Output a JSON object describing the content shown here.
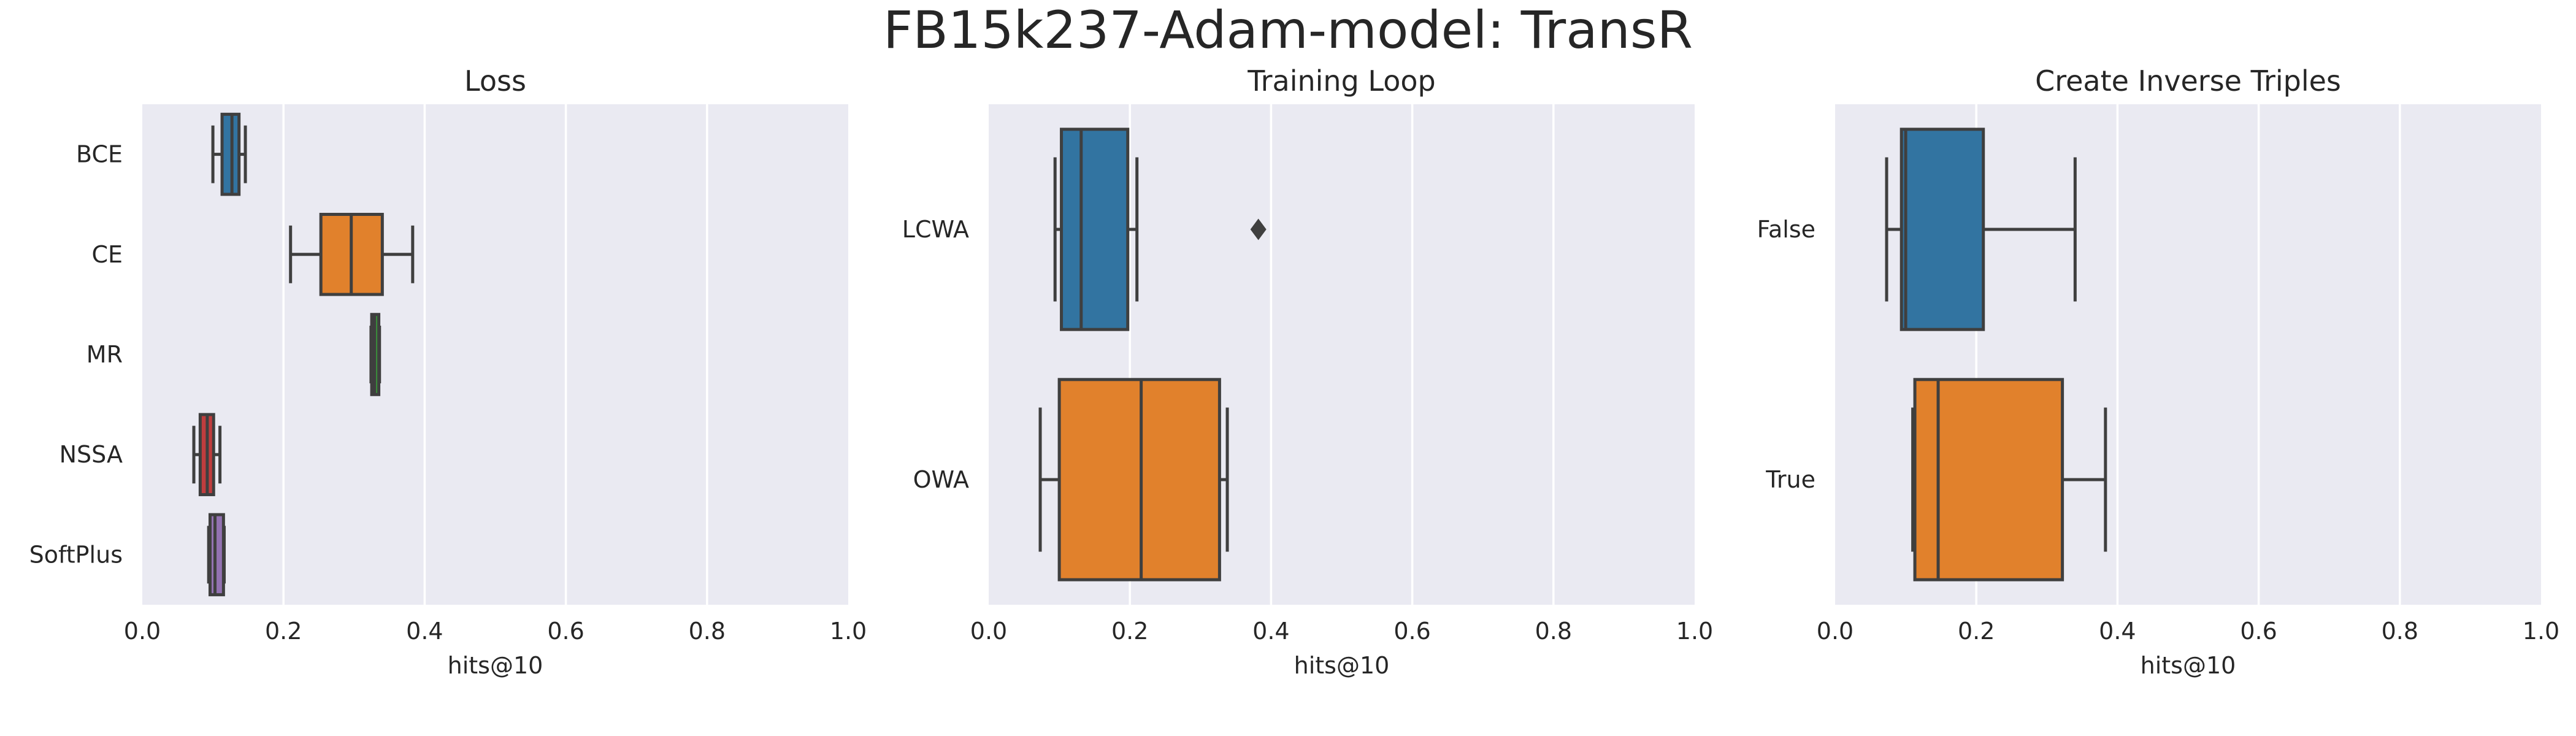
{
  "suptitle": "FB15k237-Adam-model: TransR",
  "chart_data": [
    {
      "type": "box",
      "orientation": "horizontal",
      "title": "Loss",
      "xlabel": "hits@10",
      "ylabel": "",
      "xlim": [
        0.0,
        1.0
      ],
      "xticks": [
        "0.0",
        "0.2",
        "0.4",
        "0.6",
        "0.8",
        "1.0"
      ],
      "grid": true,
      "categories": [
        "BCE",
        "CE",
        "MR",
        "NSSA",
        "SoftPlus"
      ],
      "boxes": [
        {
          "category": "BCE",
          "color": "#3274a1",
          "whislo": 0.1,
          "q1": 0.113,
          "med": 0.127,
          "q3": 0.137,
          "whishi": 0.146,
          "outliers": []
        },
        {
          "category": "CE",
          "color": "#e1812c",
          "whislo": 0.21,
          "q1": 0.253,
          "med": 0.296,
          "q3": 0.34,
          "whishi": 0.383,
          "outliers": []
        },
        {
          "category": "MR",
          "color": "#3a923a",
          "whislo": 0.324,
          "q1": 0.325,
          "med": 0.329,
          "q3": 0.335,
          "whishi": 0.336,
          "outliers": []
        },
        {
          "category": "NSSA",
          "color": "#c03d3e",
          "whislo": 0.073,
          "q1": 0.082,
          "med": 0.092,
          "q3": 0.101,
          "whishi": 0.11,
          "outliers": []
        },
        {
          "category": "SoftPlus",
          "color": "#9372b2",
          "whislo": 0.094,
          "q1": 0.096,
          "med": 0.103,
          "q3": 0.115,
          "whishi": 0.116,
          "outliers": []
        }
      ]
    },
    {
      "type": "box",
      "orientation": "horizontal",
      "title": "Training Loop",
      "xlabel": "hits@10",
      "ylabel": "",
      "xlim": [
        0.0,
        1.0
      ],
      "xticks": [
        "0.0",
        "0.2",
        "0.4",
        "0.6",
        "0.8",
        "1.0"
      ],
      "grid": true,
      "categories": [
        "LCWA",
        "OWA"
      ],
      "boxes": [
        {
          "category": "LCWA",
          "color": "#3274a1",
          "whislo": 0.094,
          "q1": 0.103,
          "med": 0.131,
          "q3": 0.197,
          "whishi": 0.21,
          "outliers": [
            0.382
          ]
        },
        {
          "category": "OWA",
          "color": "#e1812c",
          "whislo": 0.073,
          "q1": 0.1,
          "med": 0.216,
          "q3": 0.327,
          "whishi": 0.338,
          "outliers": []
        }
      ]
    },
    {
      "type": "box",
      "orientation": "horizontal",
      "title": "Create Inverse Triples",
      "xlabel": "hits@10",
      "ylabel": "",
      "xlim": [
        0.0,
        1.0
      ],
      "xticks": [
        "0.0",
        "0.2",
        "0.4",
        "0.6",
        "0.8",
        "1.0"
      ],
      "grid": true,
      "categories": [
        "False",
        "True"
      ],
      "boxes": [
        {
          "category": "False",
          "color": "#3274a1",
          "whislo": 0.073,
          "q1": 0.094,
          "med": 0.1,
          "q3": 0.21,
          "whishi": 0.34,
          "outliers": []
        },
        {
          "category": "True",
          "color": "#e1812c",
          "whislo": 0.11,
          "q1": 0.113,
          "med": 0.146,
          "q3": 0.322,
          "whishi": 0.383,
          "outliers": []
        }
      ]
    }
  ]
}
